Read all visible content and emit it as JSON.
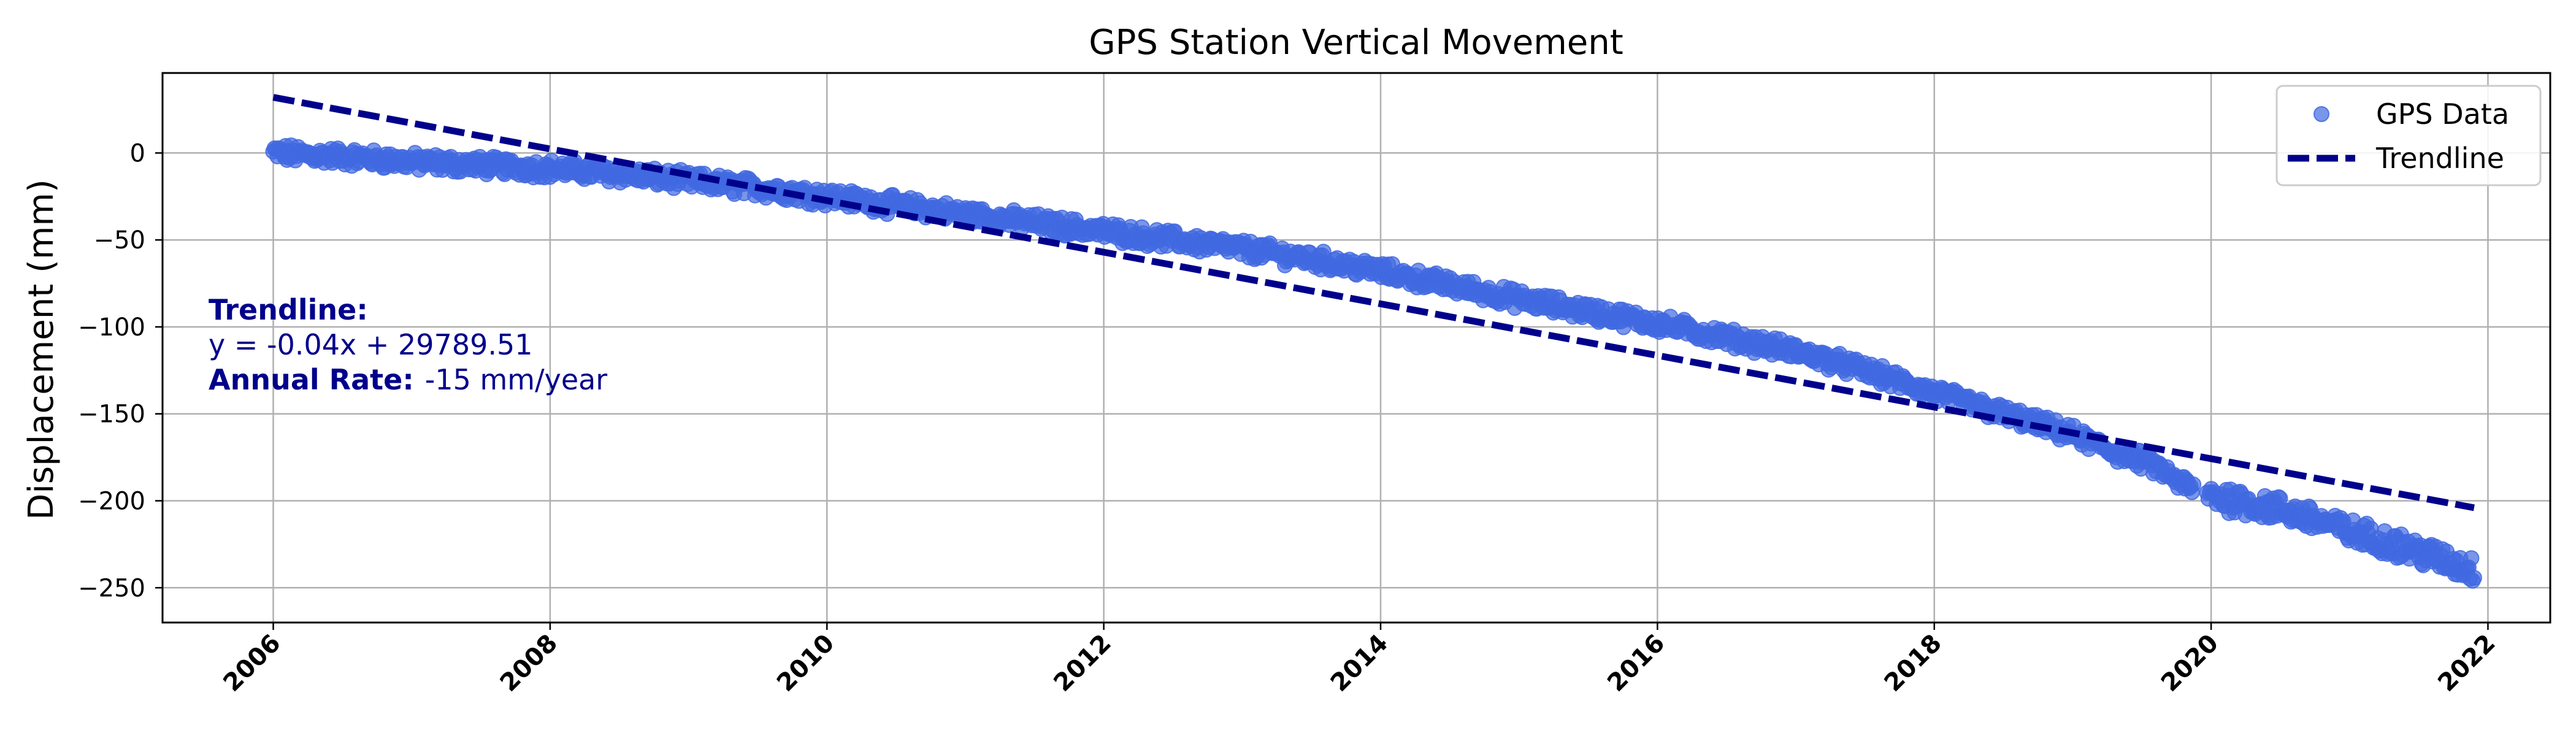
{
  "chart_data": {
    "type": "scatter",
    "title": "GPS Station Vertical Movement",
    "xlabel": "",
    "ylabel": "Displacement (mm)",
    "xlim": [
      2005.2,
      2022.45
    ],
    "ylim": [
      -270,
      46
    ],
    "x_ticks": [
      "2006",
      "2008",
      "2010",
      "2012",
      "2014",
      "2016",
      "2018",
      "2020",
      "2022"
    ],
    "y_ticks": [
      0,
      -50,
      -100,
      -150,
      -200,
      -250
    ],
    "grid": true,
    "legend": "top-right",
    "series": [
      {
        "name": "GPS Data",
        "kind": "scatter",
        "color": "#4169e1",
        "x_range": [
          2006.0,
          2021.9
        ],
        "points": [
          [
            2006.0,
            0
          ],
          [
            2006.5,
            -2
          ],
          [
            2007.0,
            -5
          ],
          [
            2007.5,
            -7
          ],
          [
            2008.0,
            -9
          ],
          [
            2008.5,
            -12
          ],
          [
            2009.0,
            -16
          ],
          [
            2009.5,
            -20
          ],
          [
            2010.0,
            -25
          ],
          [
            2010.5,
            -30
          ],
          [
            2011.0,
            -35
          ],
          [
            2011.5,
            -40
          ],
          [
            2012.0,
            -45
          ],
          [
            2012.5,
            -50
          ],
          [
            2013.0,
            -55
          ],
          [
            2013.5,
            -61
          ],
          [
            2014.0,
            -68
          ],
          [
            2014.5,
            -76
          ],
          [
            2015.0,
            -84
          ],
          [
            2015.5,
            -91
          ],
          [
            2016.0,
            -98
          ],
          [
            2016.5,
            -106
          ],
          [
            2017.0,
            -114
          ],
          [
            2017.5,
            -125
          ],
          [
            2018.0,
            -138
          ],
          [
            2018.5,
            -150
          ],
          [
            2019.0,
            -162
          ],
          [
            2019.3,
            -172
          ],
          [
            2019.55,
            -178
          ],
          [
            2019.85,
            -193
          ],
          [
            2020.0,
            -197
          ],
          [
            2020.5,
            -205
          ],
          [
            2020.8,
            -212
          ],
          [
            2021.0,
            -218
          ],
          [
            2021.3,
            -224
          ],
          [
            2021.6,
            -232
          ],
          [
            2021.9,
            -240
          ]
        ]
      },
      {
        "name": "Trendline",
        "kind": "line",
        "style": "dashed",
        "color": "#00008b",
        "x": [
          2006.0,
          2021.9
        ],
        "y": [
          32,
          -204
        ]
      }
    ],
    "annotation": {
      "label": "Trendline:",
      "equation": "y = -0.04x + 29789.51",
      "rate_label": "Annual Rate:",
      "rate_value": "-15 mm/year",
      "color": "#00008b"
    }
  }
}
